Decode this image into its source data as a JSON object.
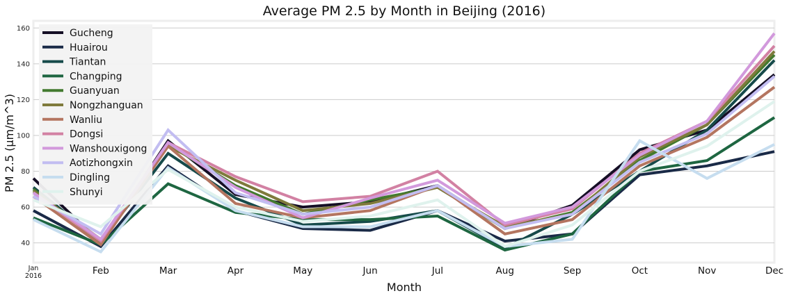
{
  "chart_data": {
    "type": "line",
    "title": "Average PM 2.5 by Month in Beijing (2016)",
    "xlabel": "Month",
    "ylabel": "PM 2.5 (µm/m^3)",
    "categories": [
      "Jan",
      "Feb",
      "Mar",
      "Apr",
      "May",
      "Jun",
      "Jul",
      "Aug",
      "Sep",
      "Oct",
      "Nov",
      "Dec"
    ],
    "x_tick_labels": [
      "Jan",
      "Feb",
      "Mar",
      "Apr",
      "May",
      "Jun",
      "Jul",
      "Aug",
      "Sep",
      "Oct",
      "Nov",
      "Dec"
    ],
    "x_first_tick_sublabel": "2016",
    "ylim": [
      29,
      164
    ],
    "yticks": [
      40,
      60,
      80,
      100,
      120,
      140,
      160
    ],
    "grid": true,
    "legend_position": "upper-left",
    "series": [
      {
        "name": "Gucheng",
        "color": "#150e25",
        "values": [
          76,
          40,
          97,
          67,
          60,
          63,
          72,
          48,
          61,
          92,
          103,
          134
        ]
      },
      {
        "name": "Huairou",
        "color": "#1a2a47",
        "values": [
          58,
          38,
          83,
          58,
          48,
          47,
          58,
          41,
          45,
          78,
          83,
          91
        ]
      },
      {
        "name": "Tiantan",
        "color": "#164a4a",
        "values": [
          71,
          41,
          90,
          65,
          50,
          52,
          58,
          37,
          56,
          80,
          103,
          142
        ]
      },
      {
        "name": "Changping",
        "color": "#1e6641",
        "values": [
          54,
          39,
          73,
          57,
          53,
          53,
          55,
          36,
          45,
          80,
          86,
          110
        ]
      },
      {
        "name": "Guanyuan",
        "color": "#437a2f",
        "values": [
          70,
          40,
          95,
          72,
          56,
          64,
          71,
          48,
          57,
          86,
          106,
          145
        ]
      },
      {
        "name": "Nongzhanguan",
        "color": "#7f7a3c",
        "values": [
          69,
          42,
          94,
          75,
          58,
          62,
          71,
          49,
          56,
          88,
          106,
          147
        ]
      },
      {
        "name": "Wanliu",
        "color": "#b47560",
        "values": [
          66,
          39,
          94,
          62,
          54,
          58,
          72,
          45,
          53,
          83,
          99,
          127
        ]
      },
      {
        "name": "Dongsi",
        "color": "#d281a3",
        "values": [
          68,
          41,
          96,
          77,
          63,
          66,
          80,
          50,
          59,
          90,
          108,
          150
        ]
      },
      {
        "name": "Wanshouxigong",
        "color": "#d299dc",
        "values": [
          68,
          42,
          96,
          71,
          54,
          65,
          75,
          51,
          60,
          89,
          108,
          157
        ]
      },
      {
        "name": "Aotizhongxin",
        "color": "#c2bdf1",
        "values": [
          66,
          45,
          103,
          68,
          56,
          60,
          72,
          48,
          56,
          85,
          101,
          133
        ]
      },
      {
        "name": "Dingling",
        "color": "#c6ddef",
        "values": [
          53,
          35,
          82,
          58,
          49,
          49,
          58,
          38,
          42,
          97,
          76,
          95
        ]
      },
      {
        "name": "Shunyi",
        "color": "#dff2ed",
        "values": [
          64,
          49,
          81,
          60,
          52,
          55,
          64,
          38,
          50,
          80,
          94,
          119
        ]
      }
    ]
  }
}
